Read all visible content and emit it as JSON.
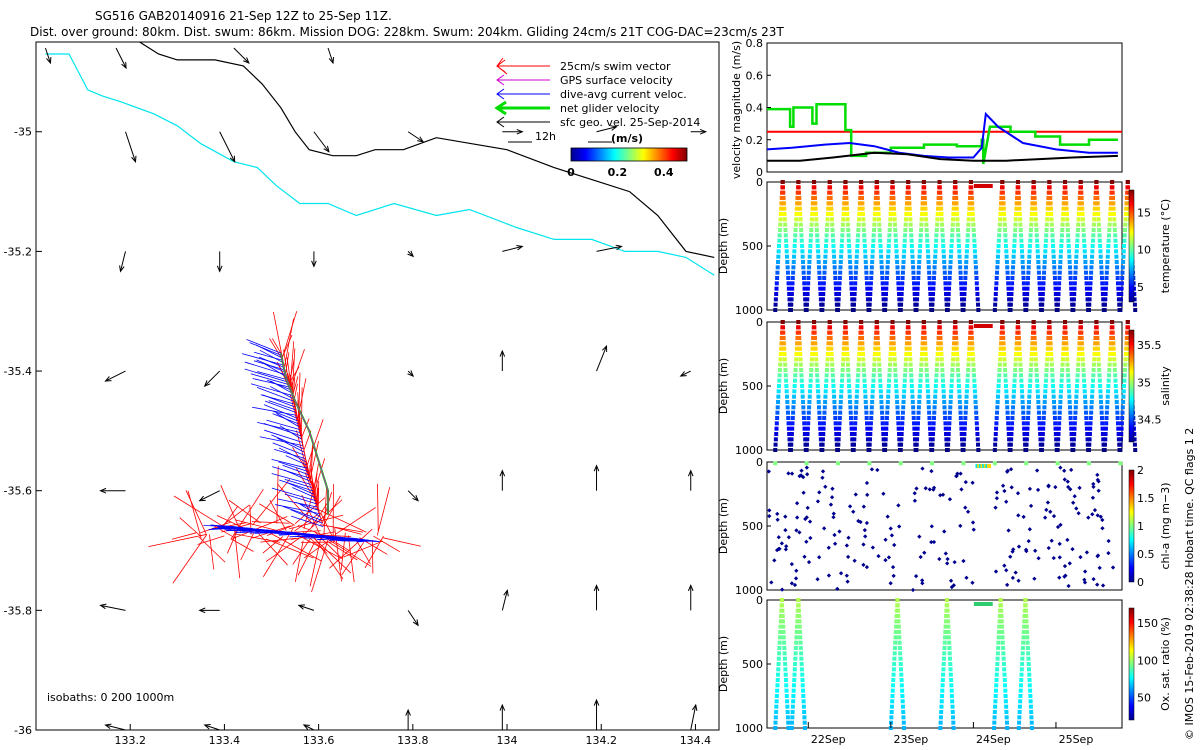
{
  "header": {
    "line1": "SG516 GAB20140916 21-Sep 12Z to 25-Sep 11Z.",
    "line2": "Dist. over ground: 80km. Dist. swum: 86km. Mission DOG: 228km. Swum: 204km. Gliding 24cm/s 21T COG-DAC=23cm/s 23T"
  },
  "credit": "© IMOS 15-Feb-2019 02:38:28 Hobart time. QC flags 1  2",
  "colors": {
    "swim": "#ff0000",
    "gps": "#cc00cc",
    "dac": "#0000ff",
    "net": "#00dd00",
    "sfc": "#000000",
    "coast": "#00e5ee",
    "isobath": "#000000",
    "red_line": "#ff0000"
  },
  "chart_data": [
    {
      "type": "scatter",
      "name": "map",
      "xlim": [
        133.0,
        134.45
      ],
      "ylim": [
        -36.0,
        -34.85
      ],
      "xticks": [
        "133.2",
        "133.4",
        "133.6",
        "133.8",
        "134",
        "134.2",
        "134.4"
      ],
      "yticks": [
        "-35",
        "-35.2",
        "-35.4",
        "-35.6",
        "-35.8",
        "-36"
      ],
      "legend": {
        "position": "top-right",
        "entries": [
          "25cm/s swim vector",
          "GPS surface velocity",
          "dive-avg current veloc.",
          "net glider velocity",
          "sfc geo. vel. 25-Sep-2014"
        ]
      },
      "scale_label": "12h",
      "colorbar": {
        "label": "(m/s)",
        "ticks": [
          "0",
          "0.2",
          "0.4"
        ],
        "range": [
          0,
          0.5
        ]
      },
      "isobath_label": "isobaths: 0   200  1000m",
      "coastline": [
        [
          133.02,
          -34.87
        ],
        [
          133.07,
          -34.87
        ],
        [
          133.09,
          -34.9
        ],
        [
          133.11,
          -34.93
        ],
        [
          133.14,
          -34.94
        ],
        [
          133.18,
          -34.95
        ],
        [
          133.25,
          -34.97
        ],
        [
          133.3,
          -34.99
        ],
        [
          133.35,
          -35.02
        ],
        [
          133.42,
          -35.05
        ],
        [
          133.47,
          -35.06
        ],
        [
          133.51,
          -35.09
        ],
        [
          133.56,
          -35.12
        ],
        [
          133.62,
          -35.12
        ],
        [
          133.68,
          -35.14
        ],
        [
          133.76,
          -35.12
        ],
        [
          133.85,
          -35.14
        ],
        [
          133.92,
          -35.13
        ],
        [
          134.02,
          -35.16
        ],
        [
          134.1,
          -35.18
        ],
        [
          134.18,
          -35.18
        ],
        [
          134.25,
          -35.2
        ],
        [
          134.32,
          -35.2
        ],
        [
          134.38,
          -35.21
        ],
        [
          134.44,
          -35.24
        ]
      ],
      "isobath_1000": [
        [
          133.22,
          -34.85
        ],
        [
          133.26,
          -34.87
        ],
        [
          133.3,
          -34.88
        ],
        [
          133.38,
          -34.88
        ],
        [
          133.44,
          -34.89
        ],
        [
          133.48,
          -34.92
        ],
        [
          133.52,
          -34.96
        ],
        [
          133.55,
          -35.0
        ],
        [
          133.58,
          -35.03
        ],
        [
          133.63,
          -35.04
        ],
        [
          133.68,
          -35.04
        ],
        [
          133.72,
          -35.03
        ],
        [
          133.78,
          -35.03
        ],
        [
          133.85,
          -35.01
        ],
        [
          134.0,
          -35.03
        ],
        [
          134.1,
          -35.06
        ],
        [
          134.18,
          -35.08
        ],
        [
          134.26,
          -35.1
        ],
        [
          134.32,
          -35.14
        ],
        [
          134.38,
          -35.2
        ],
        [
          134.44,
          -35.21
        ]
      ],
      "dac_track": [
        [
          133.42,
          -35.66
        ],
        [
          133.48,
          -35.665
        ],
        [
          133.55,
          -35.67
        ],
        [
          133.61,
          -35.675
        ],
        [
          133.68,
          -35.68
        ],
        [
          133.73,
          -35.685
        ]
      ],
      "swim_track": [
        [
          133.34,
          -35.67
        ],
        [
          133.45,
          -35.665
        ],
        [
          133.57,
          -35.67
        ],
        [
          133.67,
          -35.675
        ],
        [
          133.75,
          -35.68
        ]
      ],
      "track_north": [
        [
          133.61,
          -35.66
        ],
        [
          133.58,
          -35.58
        ],
        [
          133.56,
          -35.5
        ],
        [
          133.54,
          -35.43
        ],
        [
          133.52,
          -35.37
        ]
      ],
      "net_velocity": [
        [
          133.52,
          -35.37
        ],
        [
          133.53,
          -35.41
        ],
        [
          133.55,
          -35.45
        ],
        [
          133.58,
          -35.5
        ],
        [
          133.6,
          -35.55
        ],
        [
          133.62,
          -35.6
        ],
        [
          133.62,
          -35.64
        ]
      ],
      "sfc_vectors": [
        {
          "lon": 133.02,
          "lat": -34.86,
          "u": 0.01,
          "v": -0.03
        },
        {
          "lon": 133.17,
          "lat": -34.86,
          "u": 0.02,
          "v": -0.04
        },
        {
          "lon": 133.42,
          "lat": -34.86,
          "u": 0.03,
          "v": -0.03
        },
        {
          "lon": 133.62,
          "lat": -34.86,
          "u": 0.01,
          "v": -0.03
        },
        {
          "lon": 133.19,
          "lat": -35.0,
          "u": 0.02,
          "v": -0.06
        },
        {
          "lon": 133.39,
          "lat": -35.0,
          "u": 0.03,
          "v": -0.06
        },
        {
          "lon": 133.59,
          "lat": -35.0,
          "u": 0.03,
          "v": -0.04
        },
        {
          "lon": 133.79,
          "lat": -35.0,
          "u": 0.03,
          "v": -0.02
        },
        {
          "lon": 133.99,
          "lat": -35.0,
          "u": 0.04,
          "v": 0.0
        },
        {
          "lon": 134.19,
          "lat": -35.0,
          "u": 0.04,
          "v": 0.01
        },
        {
          "lon": 134.39,
          "lat": -35.0,
          "u": 0.03,
          "v": 0.0
        },
        {
          "lon": 133.19,
          "lat": -35.2,
          "u": -0.01,
          "v": -0.04
        },
        {
          "lon": 133.39,
          "lat": -35.2,
          "u": 0.0,
          "v": -0.04
        },
        {
          "lon": 133.59,
          "lat": -35.2,
          "u": 0.0,
          "v": -0.03
        },
        {
          "lon": 133.79,
          "lat": -35.2,
          "u": 0.01,
          "v": -0.01
        },
        {
          "lon": 133.99,
          "lat": -35.2,
          "u": 0.04,
          "v": 0.01
        },
        {
          "lon": 134.19,
          "lat": -35.2,
          "u": 0.05,
          "v": 0.01
        },
        {
          "lon": 133.19,
          "lat": -35.4,
          "u": -0.04,
          "v": -0.02
        },
        {
          "lon": 133.39,
          "lat": -35.4,
          "u": -0.03,
          "v": -0.03
        },
        {
          "lon": 133.79,
          "lat": -35.4,
          "u": 0.01,
          "v": -0.01
        },
        {
          "lon": 133.99,
          "lat": -35.4,
          "u": 0.0,
          "v": 0.04
        },
        {
          "lon": 134.19,
          "lat": -35.4,
          "u": 0.02,
          "v": 0.05
        },
        {
          "lon": 134.39,
          "lat": -35.4,
          "u": -0.02,
          "v": -0.01
        },
        {
          "lon": 133.19,
          "lat": -35.6,
          "u": -0.05,
          "v": 0.0
        },
        {
          "lon": 133.39,
          "lat": -35.6,
          "u": -0.04,
          "v": -0.02
        },
        {
          "lon": 133.79,
          "lat": -35.6,
          "u": 0.02,
          "v": -0.02
        },
        {
          "lon": 133.99,
          "lat": -35.6,
          "u": 0.0,
          "v": 0.04
        },
        {
          "lon": 134.19,
          "lat": -35.6,
          "u": 0.0,
          "v": 0.05
        },
        {
          "lon": 134.39,
          "lat": -35.6,
          "u": 0.0,
          "v": 0.04
        },
        {
          "lon": 133.19,
          "lat": -35.8,
          "u": -0.05,
          "v": 0.01
        },
        {
          "lon": 133.39,
          "lat": -35.8,
          "u": -0.04,
          "v": 0.0
        },
        {
          "lon": 133.59,
          "lat": -35.8,
          "u": -0.03,
          "v": 0.01
        },
        {
          "lon": 133.79,
          "lat": -35.8,
          "u": 0.02,
          "v": -0.03
        },
        {
          "lon": 133.99,
          "lat": -35.8,
          "u": 0.01,
          "v": 0.04
        },
        {
          "lon": 134.19,
          "lat": -35.8,
          "u": 0.0,
          "v": 0.05
        },
        {
          "lon": 134.39,
          "lat": -35.8,
          "u": 0.0,
          "v": 0.05
        },
        {
          "lon": 133.19,
          "lat": -36.0,
          "u": -0.04,
          "v": 0.01
        },
        {
          "lon": 133.39,
          "lat": -36.0,
          "u": -0.03,
          "v": 0.01
        },
        {
          "lon": 133.59,
          "lat": -36.0,
          "u": -0.02,
          "v": 0.01
        },
        {
          "lon": 133.79,
          "lat": -36.0,
          "u": 0.0,
          "v": 0.04
        },
        {
          "lon": 133.99,
          "lat": -36.0,
          "u": 0.0,
          "v": 0.05
        },
        {
          "lon": 134.19,
          "lat": -36.0,
          "u": 0.0,
          "v": 0.06
        },
        {
          "lon": 134.39,
          "lat": -36.0,
          "u": 0.01,
          "v": 0.05
        }
      ]
    },
    {
      "type": "line",
      "name": "velocity",
      "ylabel": "velocity magnitude (m/s)",
      "ylim": [
        0,
        0.8
      ],
      "yticks": [
        "0",
        "0.2",
        "0.4",
        "0.6",
        "0.8"
      ],
      "xlim": [
        21.5,
        25.8
      ],
      "red_line": 0.25,
      "series": [
        {
          "key": "net",
          "points": [
            [
              21.5,
              0.39
            ],
            [
              21.78,
              0.39
            ],
            [
              21.78,
              0.28
            ],
            [
              21.82,
              0.28
            ],
            [
              21.82,
              0.4
            ],
            [
              22.05,
              0.4
            ],
            [
              22.05,
              0.3
            ],
            [
              22.1,
              0.3
            ],
            [
              22.1,
              0.42
            ],
            [
              22.45,
              0.42
            ],
            [
              22.45,
              0.26
            ],
            [
              22.52,
              0.26
            ],
            [
              22.52,
              0.1
            ],
            [
              22.7,
              0.1
            ],
            [
              22.7,
              0.12
            ],
            [
              23.0,
              0.12
            ],
            [
              23.0,
              0.15
            ],
            [
              23.4,
              0.15
            ],
            [
              23.4,
              0.17
            ],
            [
              23.8,
              0.17
            ],
            [
              23.8,
              0.16
            ],
            [
              24.1,
              0.16
            ],
            [
              24.1,
              0.2
            ],
            [
              24.12,
              0.2
            ],
            [
              24.12,
              0.05
            ],
            [
              24.2,
              0.28
            ],
            [
              24.45,
              0.28
            ],
            [
              24.45,
              0.25
            ],
            [
              24.75,
              0.25
            ],
            [
              24.75,
              0.22
            ],
            [
              25.05,
              0.22
            ],
            [
              25.05,
              0.17
            ],
            [
              25.4,
              0.17
            ],
            [
              25.4,
              0.2
            ],
            [
              25.75,
              0.2
            ]
          ]
        },
        {
          "key": "dac",
          "points": [
            [
              21.5,
              0.14
            ],
            [
              21.8,
              0.15
            ],
            [
              22.2,
              0.17
            ],
            [
              22.5,
              0.18
            ],
            [
              22.8,
              0.16
            ],
            [
              23.1,
              0.12
            ],
            [
              23.4,
              0.1
            ],
            [
              23.7,
              0.09
            ],
            [
              24.0,
              0.09
            ],
            [
              24.1,
              0.15
            ],
            [
              24.15,
              0.36
            ],
            [
              24.3,
              0.28
            ],
            [
              24.6,
              0.18
            ],
            [
              25.0,
              0.14
            ],
            [
              25.4,
              0.12
            ],
            [
              25.75,
              0.12
            ]
          ]
        },
        {
          "key": "sfc",
          "points": [
            [
              21.5,
              0.07
            ],
            [
              21.9,
              0.07
            ],
            [
              22.3,
              0.09
            ],
            [
              22.8,
              0.12
            ],
            [
              23.2,
              0.11
            ],
            [
              23.6,
              0.08
            ],
            [
              24.0,
              0.07
            ],
            [
              24.4,
              0.07
            ],
            [
              24.8,
              0.08
            ],
            [
              25.2,
              0.09
            ],
            [
              25.75,
              0.1
            ]
          ]
        }
      ]
    },
    {
      "type": "scatter",
      "name": "temperature",
      "ylabel": "Depth (m)",
      "ylim": [
        1000,
        0
      ],
      "yticks": [
        "0",
        "500",
        "1000"
      ],
      "colorbar": {
        "label": "temperature (°C)",
        "ticks": [
          "5",
          "10",
          "15"
        ],
        "range": [
          3,
          18
        ]
      }
    },
    {
      "type": "scatter",
      "name": "salinity",
      "ylabel": "Depth (m)",
      "ylim": [
        1000,
        0
      ],
      "yticks": [
        "0",
        "500",
        "1000"
      ],
      "colorbar": {
        "label": "salinity",
        "ticks": [
          "34.5",
          "35",
          "35.5"
        ],
        "range": [
          34.2,
          35.7
        ]
      }
    },
    {
      "type": "scatter",
      "name": "chla",
      "ylabel": "Depth (m)",
      "ylim": [
        1000,
        0
      ],
      "yticks": [
        "0",
        "500",
        "1000"
      ],
      "colorbar": {
        "label": "chl-a (mg m−3)",
        "ticks": [
          "0",
          "0.5",
          "1",
          "1.5",
          "2"
        ],
        "range": [
          0,
          2
        ]
      }
    },
    {
      "type": "scatter",
      "name": "oxygen",
      "ylabel": "Depth (m)",
      "ylim": [
        1000,
        0
      ],
      "yticks": [
        "0",
        "500",
        "1000"
      ],
      "colorbar": {
        "label": "Ox. sat. ratio (%)",
        "ticks": [
          "50",
          "100",
          "150"
        ],
        "range": [
          20,
          170
        ]
      }
    },
    {
      "type": "axis",
      "name": "time",
      "xlim": [
        21.5,
        25.8
      ],
      "xticks": [
        {
          "label": "22Sep",
          "value": 22
        },
        {
          "label": "23Sep",
          "value": 23
        },
        {
          "label": "24Sep",
          "value": 24
        },
        {
          "label": "25Sep",
          "value": 25
        }
      ]
    }
  ]
}
